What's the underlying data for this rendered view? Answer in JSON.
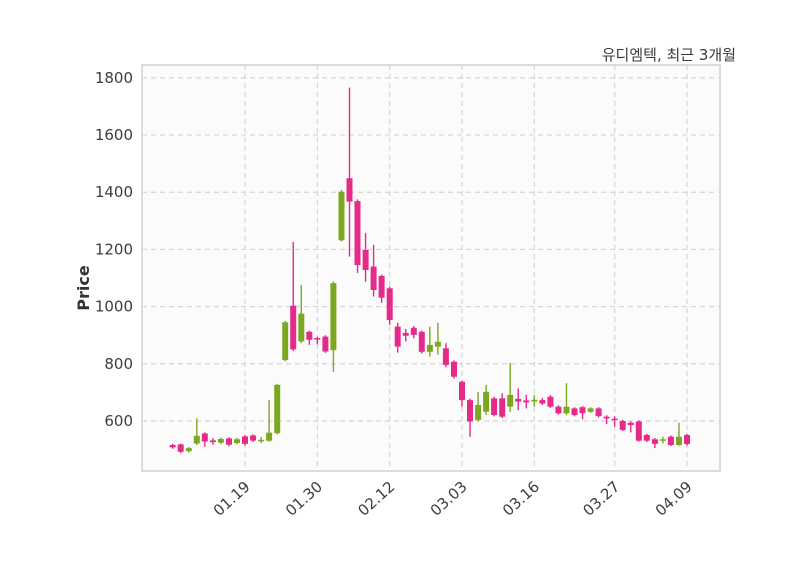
{
  "header": {
    "title": "유디엠텍, 최근 3개월"
  },
  "chart_data": {
    "type": "candlestick",
    "title": "유디엠텍, 최근 3개월",
    "xlabel": "",
    "ylabel": "Price",
    "ylim": [
      425,
      1845
    ],
    "yticks": [
      600,
      800,
      1000,
      1200,
      1400,
      1600,
      1800
    ],
    "grid": "dashed, both axes",
    "legend": "none",
    "xticks": [
      {
        "index": 9,
        "label": "01.19"
      },
      {
        "index": 18,
        "label": "01.30"
      },
      {
        "index": 27,
        "label": "02.12"
      },
      {
        "index": 36,
        "label": "03.03"
      },
      {
        "index": 45,
        "label": "03.16"
      },
      {
        "index": 55,
        "label": "03.27"
      },
      {
        "index": 64,
        "label": "04.09"
      }
    ],
    "ohlc_order": [
      "open",
      "high",
      "low",
      "close"
    ],
    "candles_ohlc": [
      [
        516,
        520,
        503,
        508
      ],
      [
        518,
        521,
        487,
        492
      ],
      [
        494,
        509,
        490,
        505
      ],
      [
        521,
        609,
        516,
        548
      ],
      [
        556,
        560,
        510,
        528
      ],
      [
        532,
        540,
        517,
        526
      ],
      [
        524,
        542,
        519,
        537
      ],
      [
        539,
        543,
        511,
        517
      ],
      [
        523,
        541,
        519,
        536
      ],
      [
        546,
        550,
        514,
        520
      ],
      [
        549,
        553,
        526,
        531
      ],
      [
        530,
        544,
        523,
        534
      ],
      [
        531,
        673,
        527,
        559
      ],
      [
        557,
        730,
        553,
        726
      ],
      [
        813,
        950,
        808,
        945
      ],
      [
        1003,
        1226,
        845,
        850
      ],
      [
        878,
        1076,
        872,
        975
      ],
      [
        912,
        916,
        866,
        884
      ],
      [
        890,
        895,
        868,
        887
      ],
      [
        895,
        900,
        838,
        843
      ],
      [
        848,
        1088,
        772,
        1082
      ],
      [
        1232,
        1408,
        1228,
        1402
      ],
      [
        1449,
        1766,
        1175,
        1367
      ],
      [
        1369,
        1375,
        1118,
        1145
      ],
      [
        1198,
        1257,
        1087,
        1128
      ],
      [
        1140,
        1216,
        1035,
        1058
      ],
      [
        1107,
        1112,
        1013,
        1031
      ],
      [
        1064,
        1070,
        936,
        953
      ],
      [
        930,
        944,
        839,
        860
      ],
      [
        908,
        922,
        878,
        898
      ],
      [
        926,
        932,
        889,
        901
      ],
      [
        912,
        916,
        836,
        842
      ],
      [
        842,
        930,
        825,
        866
      ],
      [
        860,
        943,
        832,
        877
      ],
      [
        854,
        872,
        788,
        796
      ],
      [
        807,
        812,
        748,
        755
      ],
      [
        737,
        741,
        650,
        673
      ],
      [
        673,
        678,
        545,
        598
      ],
      [
        604,
        702,
        598,
        656
      ],
      [
        632,
        726,
        621,
        702
      ],
      [
        679,
        684,
        616,
        621
      ],
      [
        679,
        697,
        610,
        615
      ],
      [
        650,
        802,
        632,
        691
      ],
      [
        677,
        714,
        638,
        668
      ],
      [
        672,
        691,
        644,
        665
      ],
      [
        668,
        690,
        650,
        674
      ],
      [
        673,
        680,
        656,
        661
      ],
      [
        685,
        690,
        645,
        650
      ],
      [
        650,
        655,
        622,
        627
      ],
      [
        627,
        732,
        620,
        650
      ],
      [
        644,
        648,
        616,
        621
      ],
      [
        648,
        652,
        606,
        627
      ],
      [
        632,
        648,
        628,
        644
      ],
      [
        644,
        648,
        612,
        617
      ],
      [
        615,
        620,
        589,
        609
      ],
      [
        608,
        616,
        580,
        603
      ],
      [
        600,
        604,
        565,
        569
      ],
      [
        594,
        598,
        560,
        586
      ],
      [
        598,
        602,
        528,
        531
      ],
      [
        551,
        555,
        526,
        531
      ],
      [
        536,
        540,
        505,
        520
      ],
      [
        531,
        545,
        522,
        536
      ],
      [
        545,
        549,
        512,
        516
      ],
      [
        516,
        594,
        513,
        545
      ],
      [
        551,
        555,
        514,
        519
      ]
    ],
    "colors": {
      "up": "#7ca821",
      "down": "#e52a8a",
      "grid": "#d6d6d6",
      "spine": "#dcdcdc",
      "plot_bg": "#fbfbfb",
      "text": "#3d3d3d"
    }
  }
}
